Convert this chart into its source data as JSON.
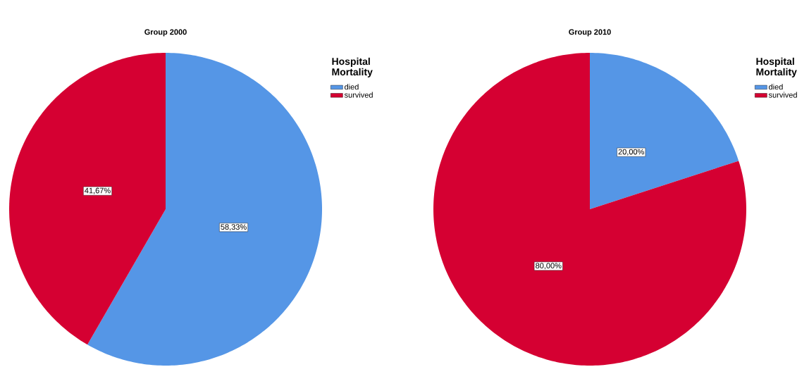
{
  "chart_data": [
    {
      "type": "pie",
      "title": "Group 2000",
      "legend_title": "Hospital Mortality",
      "categories": [
        "died",
        "survived"
      ],
      "values": [
        58.33,
        41.67
      ],
      "colors": [
        "#5596e6",
        "#d50032"
      ],
      "value_labels": [
        "58,33%",
        "41,67%"
      ],
      "legend": "top right"
    },
    {
      "type": "pie",
      "title": "Group 2010",
      "legend_title": "Hospital Mortality",
      "categories": [
        "died",
        "survived"
      ],
      "values": [
        20,
        80
      ],
      "colors": [
        "#5596e6",
        "#d50032"
      ],
      "value_labels": [
        "20,00%",
        "80,00%"
      ],
      "legend": "top right"
    }
  ]
}
